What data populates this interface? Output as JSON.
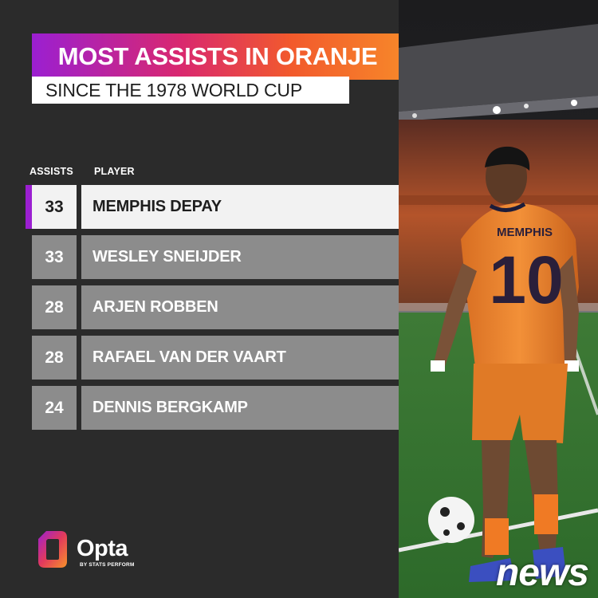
{
  "header": {
    "title": "MOST ASSISTS IN ORANJE",
    "subtitle": "SINCE THE 1978 WORLD CUP"
  },
  "chart_data": {
    "type": "table",
    "columns": [
      "ASSISTS",
      "PLAYER"
    ],
    "rows": [
      {
        "assists": 33,
        "player": "MEMPHIS DEPAY",
        "highlighted": true
      },
      {
        "assists": 33,
        "player": "WESLEY SNEIJDER",
        "highlighted": false
      },
      {
        "assists": 28,
        "player": "ARJEN ROBBEN",
        "highlighted": false
      },
      {
        "assists": 28,
        "player": "RAFAEL VAN DER VAART",
        "highlighted": false
      },
      {
        "assists": 24,
        "player": "DENNIS BERGKAMP",
        "highlighted": false
      }
    ]
  },
  "branding": {
    "logo_text": "Opta",
    "logo_tagline": "BY STATS PERFORM",
    "watermark": "news"
  },
  "photo": {
    "jersey_name": "MEMPHIS",
    "jersey_number": "10"
  },
  "colors": {
    "background": "#2b2b2b",
    "title_gradient": [
      "#9b1fd1",
      "#d9286f",
      "#f25a2c",
      "#f7872a"
    ],
    "row_fill": "#8c8c8c",
    "highlight_fill": "#f2f2f2",
    "highlight_accent": "#9b1fd1",
    "jersey_orange": "#f08a2e"
  }
}
